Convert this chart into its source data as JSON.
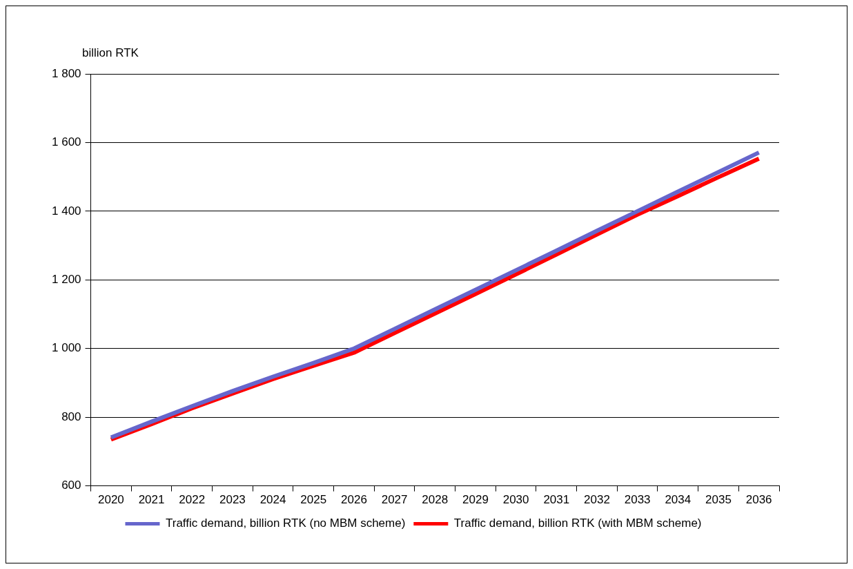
{
  "chart_data": {
    "type": "line",
    "ylabel": "billion RTK",
    "categories": [
      "2020",
      "2021",
      "2022",
      "2023",
      "2024",
      "2025",
      "2026",
      "2027",
      "2028",
      "2029",
      "2030",
      "2031",
      "2032",
      "2033",
      "2034",
      "2035",
      "2036"
    ],
    "series": [
      {
        "name": "Traffic demand, billion RTK (no MBM scheme)",
        "color": "#6666cc",
        "values": [
          741,
          787,
          832,
          876,
          918,
          958,
          1000,
          1057,
          1114,
          1171,
          1228,
          1285,
          1343,
          1400,
          1457,
          1514,
          1571
        ]
      },
      {
        "name": "Traffic demand, billion RTK (with MBM scheme)",
        "color": "#ff0000",
        "values": [
          735,
          780,
          826,
          869,
          911,
          950,
          988,
          1045,
          1102,
          1159,
          1216,
          1274,
          1332,
          1390,
          1444,
          1499,
          1553
        ]
      }
    ],
    "ylim": [
      600,
      1800
    ],
    "yticks": [
      600,
      800,
      {
        "value": 1000,
        "label": "1 000"
      },
      {
        "value": 1200,
        "label": "1 200"
      },
      {
        "value": 1400,
        "label": "1 400"
      },
      {
        "value": 1600,
        "label": "1 600"
      },
      {
        "value": 1800,
        "label": "1 800"
      }
    ],
    "grid": "y",
    "legend": "bottom",
    "marker": "none",
    "line_style": "solid"
  }
}
